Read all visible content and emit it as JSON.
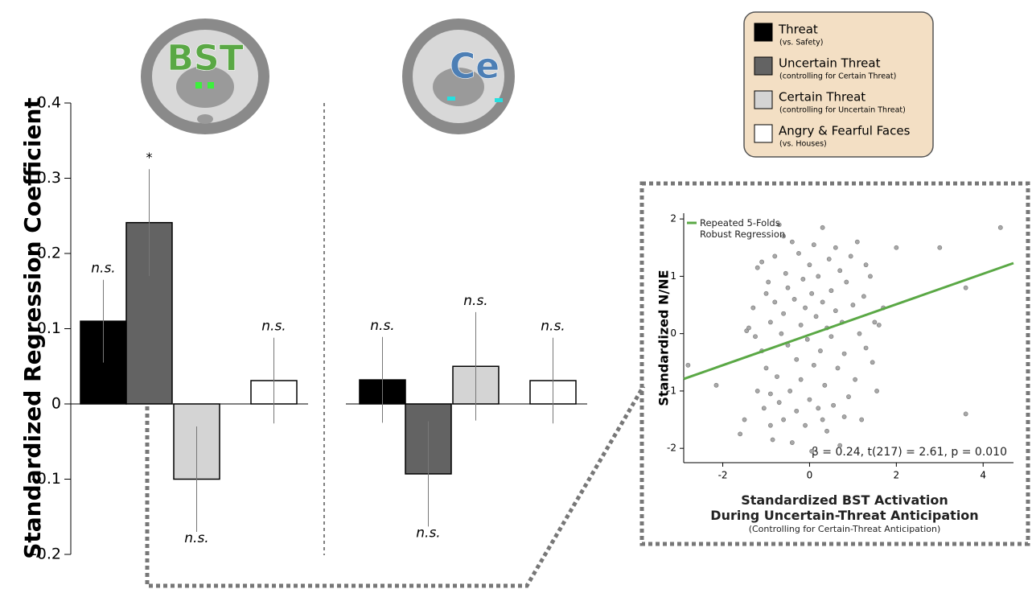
{
  "chart_data": [
    {
      "type": "bar",
      "ylabel": "Standardized Regression Coefficient",
      "ylim": [
        -0.2,
        0.4
      ],
      "yticks": [
        -0.2,
        -0.1,
        0,
        0.1,
        0.2,
        0.3,
        0.4
      ],
      "categories": [
        "BST",
        "Ce"
      ],
      "series": [
        {
          "name": "Threat",
          "note": "(vs. Safety)",
          "color": "#000000",
          "values": [
            0.11,
            0.032
          ],
          "errors": [
            0.055,
            0.057
          ],
          "labels": [
            "n.s.",
            "n.s."
          ]
        },
        {
          "name": "Uncertain Threat",
          "note": "(controlling for Certain Threat)",
          "color": "#636363",
          "values": [
            0.241,
            -0.093
          ],
          "errors": [
            0.071,
            0.07
          ],
          "labels": [
            "*",
            "n.s."
          ]
        },
        {
          "name": "Certain Threat",
          "note": "(controlling for Uncertain Threat)",
          "color": "#d4d4d4",
          "values": [
            -0.1,
            0.05
          ],
          "errors": [
            0.07,
            0.072
          ],
          "labels": [
            "n.s.",
            "n.s."
          ]
        },
        {
          "name": "Angry & Fearful Faces",
          "note": "(vs. Houses)",
          "color": "#ffffff",
          "values": [
            0.031,
            0.031
          ],
          "errors": [
            0.057,
            0.057
          ],
          "labels": [
            "n.s.",
            "n.s."
          ]
        }
      ]
    },
    {
      "type": "scatter",
      "ylabel": "Standardized N/NE",
      "xlabel": [
        "Standardized BST Activation",
        "During Uncertain-Threat Anticipation"
      ],
      "xlabel_note": "(Controlling for Certain-Threat Anticipation)",
      "annotation": "β = 0.24, t(217) = 2.61, p = 0.010",
      "xlim": [
        -2.9,
        4.7
      ],
      "xticks": [
        -2,
        0,
        2,
        4
      ],
      "ylim": [
        -2.25,
        2.1
      ],
      "yticks": [
        -2,
        -1,
        0,
        1,
        2
      ],
      "series": [
        {
          "type": "scatter",
          "color": "#a8a8a8",
          "x": [
            -2.8,
            -2.15,
            -1.6,
            -1.45,
            -1.4,
            -1.3,
            -1.25,
            -1.2,
            -1.1,
            -1.1,
            -1.05,
            -1.0,
            -1.0,
            -0.95,
            -0.9,
            -0.9,
            -0.85,
            -0.8,
            -0.8,
            -0.75,
            -0.7,
            -0.7,
            -0.65,
            -0.6,
            -0.6,
            -0.55,
            -0.5,
            -0.5,
            -0.45,
            -0.4,
            -0.4,
            -0.35,
            -0.3,
            -0.3,
            -0.25,
            -0.2,
            -0.2,
            -0.15,
            -0.1,
            -0.1,
            -0.05,
            0.0,
            0.0,
            0.05,
            0.05,
            0.1,
            0.1,
            0.15,
            0.2,
            0.2,
            0.25,
            0.3,
            0.3,
            0.35,
            0.4,
            0.4,
            0.45,
            0.5,
            0.5,
            0.55,
            0.6,
            0.6,
            0.65,
            0.7,
            0.7,
            0.75,
            0.8,
            0.85,
            0.9,
            0.95,
            1.0,
            1.05,
            1.1,
            1.15,
            1.2,
            1.25,
            1.3,
            1.4,
            1.45,
            1.5,
            1.55,
            1.6,
            1.7,
            2.0,
            3.0,
            3.6,
            3.6,
            4.4,
            -1.5,
            -1.2,
            -0.9,
            0.3,
            0.8,
            -0.6,
            1.3
          ],
          "values": [
            -0.55,
            -0.9,
            -1.75,
            0.05,
            0.1,
            0.45,
            -0.05,
            1.15,
            1.25,
            -0.3,
            -1.3,
            -0.6,
            0.7,
            0.9,
            -1.05,
            0.2,
            -1.85,
            1.35,
            0.55,
            -0.75,
            1.9,
            -1.2,
            0.0,
            0.35,
            -1.5,
            1.05,
            -0.2,
            0.8,
            -1.0,
            1.6,
            -1.9,
            0.6,
            -0.45,
            -1.35,
            1.4,
            0.15,
            -0.8,
            0.95,
            -1.6,
            0.45,
            -0.1,
            1.2,
            -1.15,
            0.7,
            -2.05,
            -0.55,
            1.55,
            0.3,
            -1.3,
            1.0,
            -0.3,
            1.85,
            0.55,
            -0.9,
            0.1,
            -1.7,
            1.3,
            -0.05,
            0.75,
            -1.25,
            1.5,
            0.4,
            -0.6,
            -1.95,
            1.1,
            0.2,
            -0.35,
            0.9,
            -1.1,
            1.35,
            0.5,
            -0.8,
            1.6,
            0.0,
            -1.5,
            0.65,
            -0.25,
            1.0,
            -0.5,
            0.2,
            -1.0,
            0.15,
            0.45,
            1.5,
            1.5,
            0.8,
            -1.4,
            1.85,
            -1.5,
            -1.0,
            -1.6,
            -1.5,
            -1.45,
            1.7,
            1.2
          ]
        },
        {
          "type": "line",
          "name": "Repeated 5-Folds Robust Regression",
          "color": "#5aa845",
          "x": [
            -2.9,
            4.7
          ],
          "values": [
            -0.79,
            1.23
          ]
        }
      ]
    }
  ]
}
